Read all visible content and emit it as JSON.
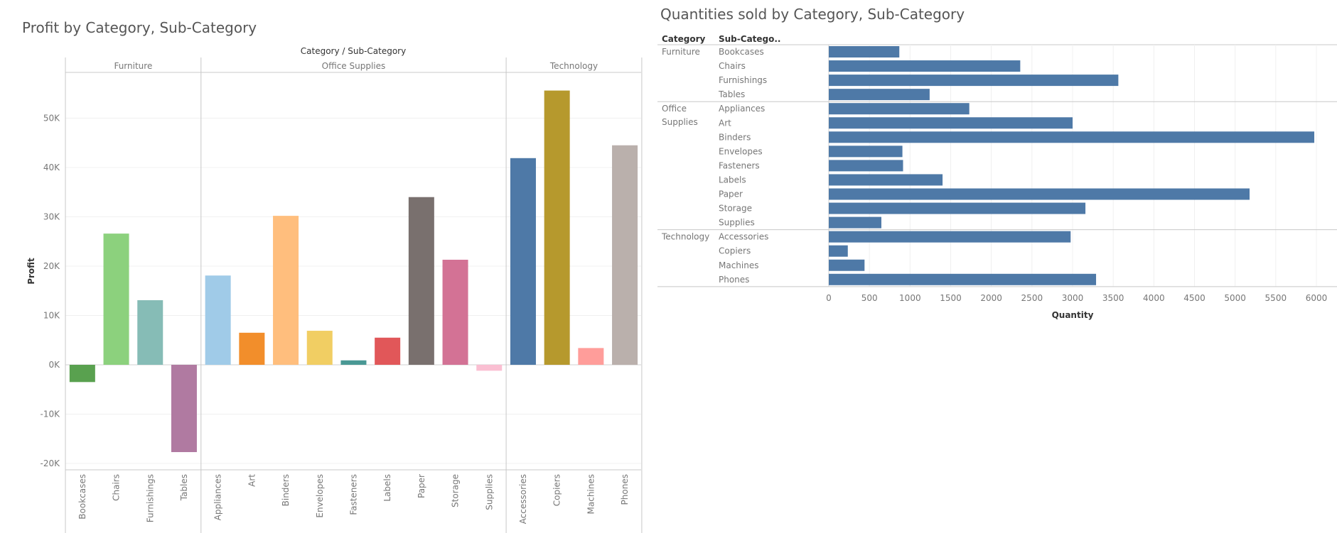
{
  "chart_data": [
    {
      "type": "bar",
      "title": "Profit by Category, Sub-Category",
      "header": "Category  /  Sub-Category",
      "ylabel": "Profit",
      "ylim": [
        -20000,
        60000
      ],
      "yticks": [
        -20000,
        -10000,
        0,
        10000,
        20000,
        30000,
        40000,
        50000
      ],
      "ytick_labels": [
        "-20K",
        "-10K",
        "0K",
        "10K",
        "20K",
        "30K",
        "40K",
        "50K"
      ],
      "grid": true,
      "groups": [
        {
          "category": "Furniture",
          "items": [
            {
              "name": "Bookcases",
              "value": -3500,
              "color": "#59a14f"
            },
            {
              "name": "Chairs",
              "value": 26600,
              "color": "#8cd17d"
            },
            {
              "name": "Furnishings",
              "value": 13100,
              "color": "#86bcb6"
            },
            {
              "name": "Tables",
              "value": -17700,
              "color": "#b07aa1"
            }
          ]
        },
        {
          "category": "Office Supplies",
          "items": [
            {
              "name": "Appliances",
              "value": 18100,
              "color": "#a0cbe8"
            },
            {
              "name": "Art",
              "value": 6500,
              "color": "#f28e2b"
            },
            {
              "name": "Binders",
              "value": 30200,
              "color": "#ffbe7d"
            },
            {
              "name": "Envelopes",
              "value": 6900,
              "color": "#f1ce63"
            },
            {
              "name": "Fasteners",
              "value": 900,
              "color": "#499894"
            },
            {
              "name": "Labels",
              "value": 5500,
              "color": "#e15759"
            },
            {
              "name": "Paper",
              "value": 34000,
              "color": "#79706e"
            },
            {
              "name": "Storage",
              "value": 21300,
              "color": "#d37295"
            },
            {
              "name": "Supplies",
              "value": -1200,
              "color": "#fabfd2"
            }
          ]
        },
        {
          "category": "Technology",
          "items": [
            {
              "name": "Accessories",
              "value": 41900,
              "color": "#4e79a7"
            },
            {
              "name": "Copiers",
              "value": 55600,
              "color": "#b6992d"
            },
            {
              "name": "Machines",
              "value": 3400,
              "color": "#ff9d9a"
            },
            {
              "name": "Phones",
              "value": 44500,
              "color": "#bab0ac"
            }
          ]
        }
      ]
    },
    {
      "type": "bar",
      "orientation": "horizontal",
      "title": "Quantities sold by Category, Sub-Category",
      "col_header_category": "Category",
      "col_header_subcategory": "Sub-Catego..",
      "xlabel": "Quantity",
      "xlim": [
        0,
        6000
      ],
      "xticks": [
        0,
        500,
        1000,
        1500,
        2000,
        2500,
        3000,
        3500,
        4000,
        4500,
        5000,
        5500,
        6000
      ],
      "bar_color": "#4e79a7",
      "grid": true,
      "groups": [
        {
          "category_lines": [
            "Furniture"
          ],
          "items": [
            {
              "name": "Bookcases",
              "value": 868
            },
            {
              "name": "Chairs",
              "value": 2356
            },
            {
              "name": "Furnishings",
              "value": 3563
            },
            {
              "name": "Tables",
              "value": 1241
            }
          ]
        },
        {
          "category_lines": [
            "Office",
            "Supplies"
          ],
          "items": [
            {
              "name": "Appliances",
              "value": 1729
            },
            {
              "name": "Art",
              "value": 3000
            },
            {
              "name": "Binders",
              "value": 5974
            },
            {
              "name": "Envelopes",
              "value": 906
            },
            {
              "name": "Fasteners",
              "value": 914
            },
            {
              "name": "Labels",
              "value": 1400
            },
            {
              "name": "Paper",
              "value": 5178
            },
            {
              "name": "Storage",
              "value": 3158
            },
            {
              "name": "Supplies",
              "value": 647
            }
          ]
        },
        {
          "category_lines": [
            "Technology"
          ],
          "items": [
            {
              "name": "Accessories",
              "value": 2976
            },
            {
              "name": "Copiers",
              "value": 234
            },
            {
              "name": "Machines",
              "value": 440
            },
            {
              "name": "Phones",
              "value": 3289
            }
          ]
        }
      ]
    }
  ]
}
